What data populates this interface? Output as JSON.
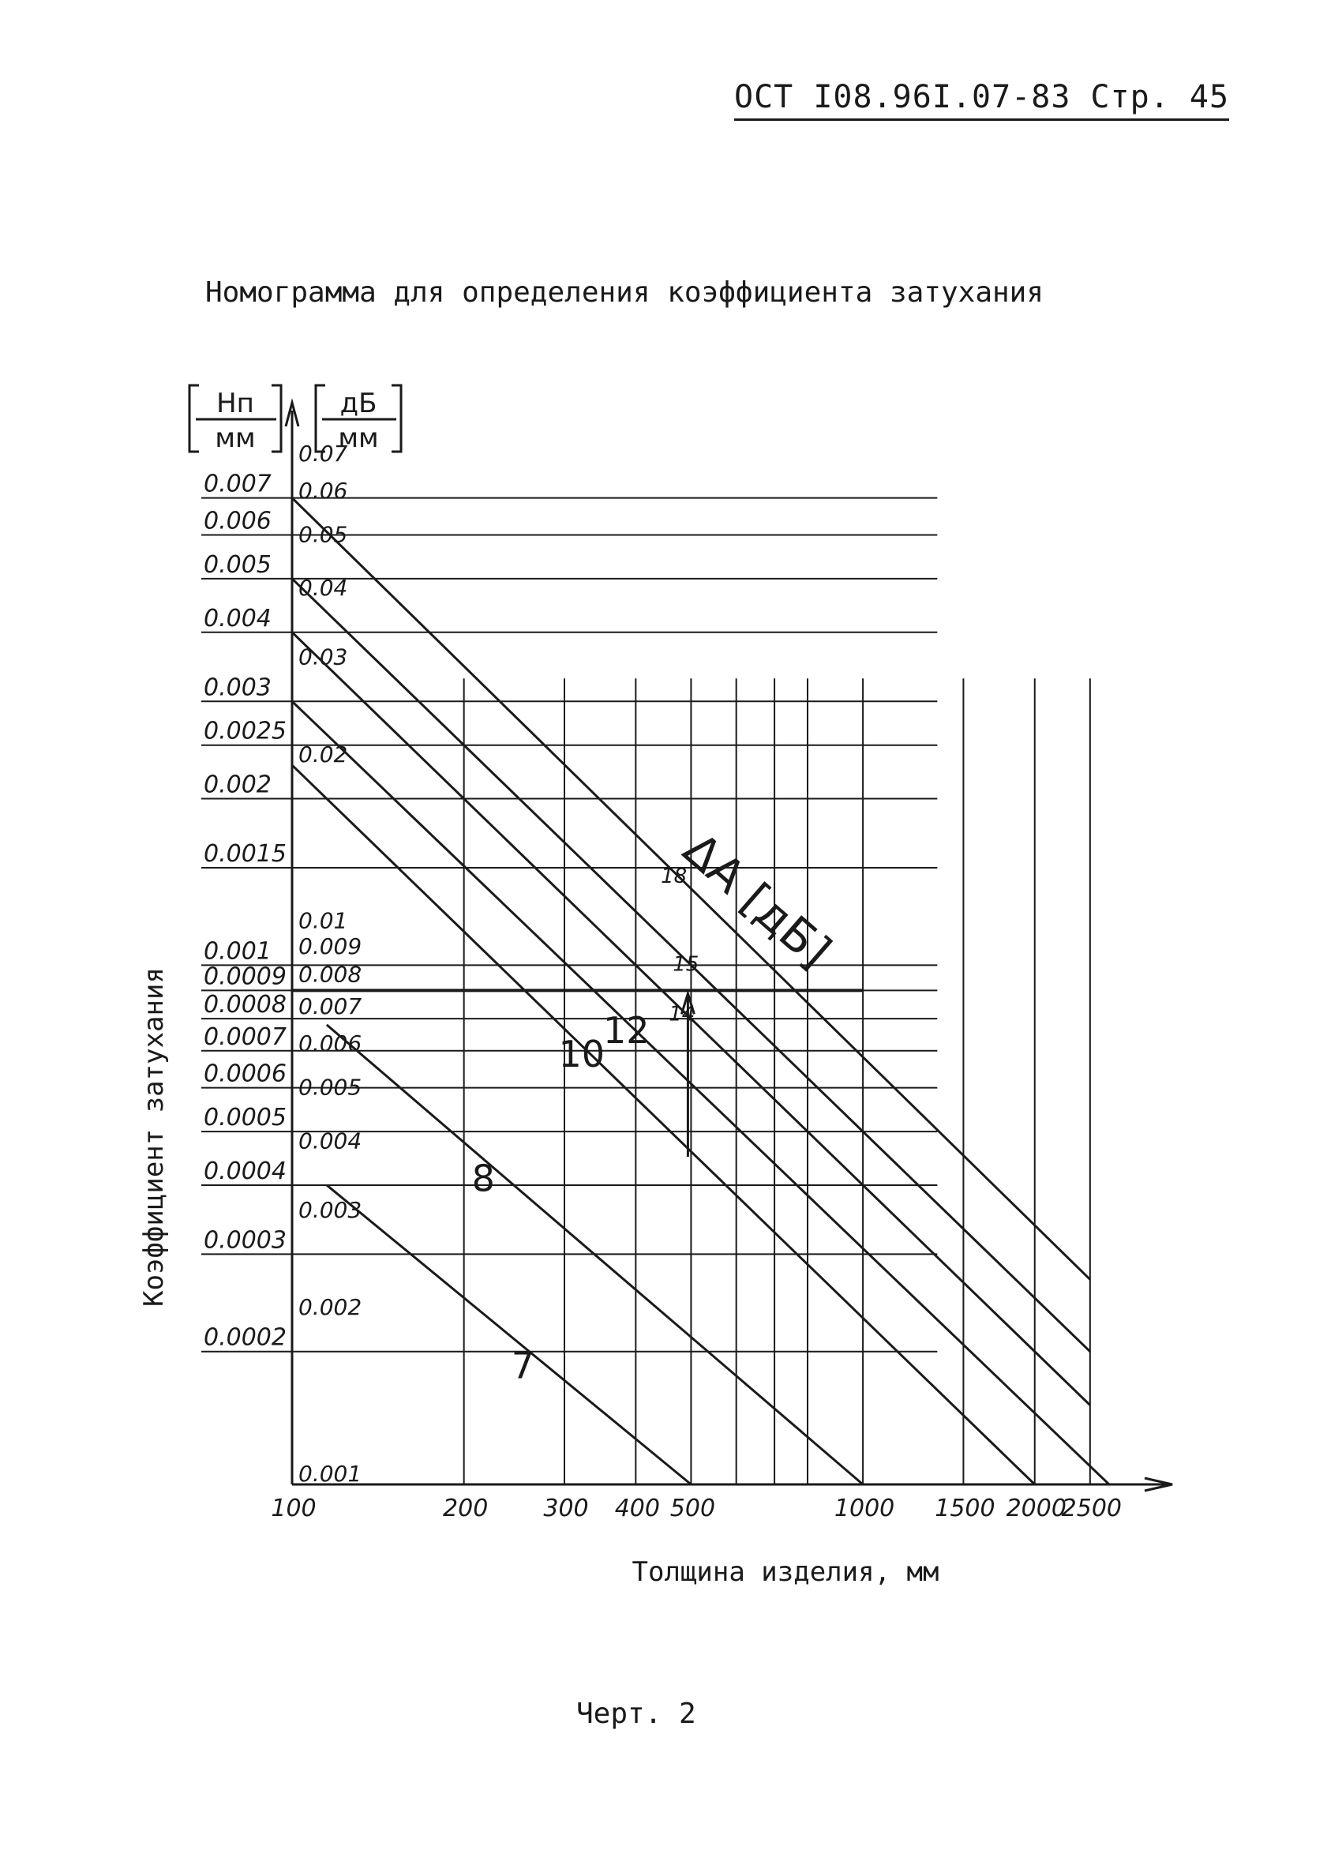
{
  "header": "ОСТ I08.96I.07-83  Стр. 45",
  "caption": "Черт. 2",
  "chart_data": {
    "type": "line",
    "title": "Номограмма для определения коэффициента затухания",
    "xlabel": "Толщина изделия, мм",
    "ylabel": "Коэффициент затухания",
    "y_unit_np": {
      "top": "Нп",
      "bottom": "мм"
    },
    "y_unit_db": {
      "top": "дБ",
      "bottom": "мм"
    },
    "x_scale": "log",
    "y_scale": "log",
    "xlim": [
      100,
      2700
    ],
    "ylim_np": [
      0.000115,
      0.008
    ],
    "x_ticks": [
      {
        "v": 100,
        "t": "100"
      },
      {
        "v": 200,
        "t": "200"
      },
      {
        "v": 300,
        "t": "300"
      },
      {
        "v": 400,
        "t": "400"
      },
      {
        "v": 500,
        "t": "500"
      },
      {
        "v": 1000,
        "t": "1000"
      },
      {
        "v": 1500,
        "t": "1500"
      },
      {
        "v": 2000,
        "t": "2000"
      },
      {
        "v": 2500,
        "t": "2500"
      }
    ],
    "x_grid": [
      200,
      300,
      400,
      500,
      600,
      700,
      800,
      1000,
      1500,
      2000,
      2500
    ],
    "y_ticks_np": [
      {
        "v": 0.007,
        "t": "0.007"
      },
      {
        "v": 0.006,
        "t": "0.006"
      },
      {
        "v": 0.005,
        "t": "0.005"
      },
      {
        "v": 0.004,
        "t": "0.004"
      },
      {
        "v": 0.003,
        "t": "0.003"
      },
      {
        "v": 0.0025,
        "t": "0.0025"
      },
      {
        "v": 0.002,
        "t": "0.002"
      },
      {
        "v": 0.0015,
        "t": "0.0015"
      },
      {
        "v": 0.001,
        "t": "0.001"
      },
      {
        "v": 0.0009,
        "t": "0.0009"
      },
      {
        "v": 0.0008,
        "t": "0.0008"
      },
      {
        "v": 0.0007,
        "t": "0.0007"
      },
      {
        "v": 0.0006,
        "t": "0.0006"
      },
      {
        "v": 0.0005,
        "t": "0.0005"
      },
      {
        "v": 0.0004,
        "t": "0.0004"
      },
      {
        "v": 0.0003,
        "t": "0.0003"
      },
      {
        "v": 0.0002,
        "t": "0.0002"
      }
    ],
    "y_ticks_db": [
      {
        "v": 0.07,
        "t": "0.07"
      },
      {
        "v": 0.06,
        "t": "0.06"
      },
      {
        "v": 0.05,
        "t": "0.05"
      },
      {
        "v": 0.04,
        "t": "0.04"
      },
      {
        "v": 0.03,
        "t": "0.03"
      },
      {
        "v": 0.02,
        "t": "0.02"
      },
      {
        "v": 0.01,
        "t": "0.01"
      },
      {
        "v": 0.009,
        "t": "0.009"
      },
      {
        "v": 0.008,
        "t": "0.008"
      },
      {
        "v": 0.007,
        "t": "0.007"
      },
      {
        "v": 0.006,
        "t": "0.006"
      },
      {
        "v": 0.005,
        "t": "0.005"
      },
      {
        "v": 0.004,
        "t": "0.004"
      },
      {
        "v": 0.003,
        "t": "0.003"
      },
      {
        "v": 0.002,
        "t": "0.002"
      },
      {
        "v": 0.001,
        "t": "0.001"
      }
    ],
    "series_param_label": "ΔA [дБ]",
    "series": [
      {
        "name": "7",
        "x": [
          115,
          500
        ],
        "y": [
          0.0004,
          0.000115
        ]
      },
      {
        "name": "8",
        "x": [
          115,
          1000
        ],
        "y": [
          0.00078,
          0.000115
        ]
      },
      {
        "name": "10",
        "x": [
          100,
          2000
        ],
        "y": [
          0.0023,
          0.000115
        ]
      },
      {
        "name": "12",
        "x": [
          100,
          2700
        ],
        "y": [
          0.003,
          0.000115
        ]
      },
      {
        "name": "14",
        "x": [
          100,
          2500
        ],
        "y": [
          0.004,
          0.00016
        ]
      },
      {
        "name": "15",
        "x": [
          100,
          2500
        ],
        "y": [
          0.005,
          0.0002
        ]
      },
      {
        "name": "18",
        "x": [
          100,
          2500
        ],
        "y": [
          0.007,
          0.00027
        ]
      }
    ],
    "example_reading": {
      "x": 500,
      "y": 0.0009
    },
    "grid": true,
    "legend": "none"
  }
}
